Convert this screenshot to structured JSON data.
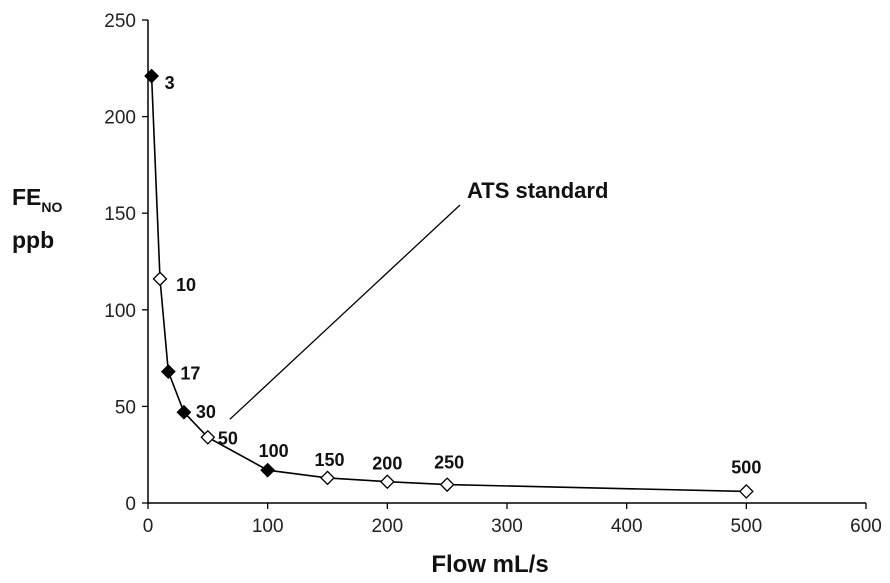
{
  "chart_data": {
    "type": "line",
    "xlabel": "Flow mL/s",
    "ylabel": {
      "main": "FE",
      "sub": "NO",
      "unit": "ppb"
    },
    "xlim": [
      0,
      600
    ],
    "ylim": [
      0,
      250
    ],
    "xticks": [
      0,
      100,
      200,
      300,
      400,
      500,
      600
    ],
    "yticks": [
      0,
      50,
      100,
      150,
      200,
      250
    ],
    "grid": false,
    "legend": "none",
    "series": [
      {
        "points": [
          {
            "x": 3,
            "y": 221,
            "label": "3",
            "filled": true
          },
          {
            "x": 10,
            "y": 116,
            "label": "10",
            "filled": false
          },
          {
            "x": 17,
            "y": 68,
            "label": "17",
            "filled": true
          },
          {
            "x": 30,
            "y": 47,
            "label": "30",
            "filled": true
          },
          {
            "x": 50,
            "y": 34,
            "label": "50",
            "filled": false
          },
          {
            "x": 100,
            "y": 17,
            "label": "100",
            "filled": true
          },
          {
            "x": 150,
            "y": 13,
            "label": "150",
            "filled": false
          },
          {
            "x": 200,
            "y": 11,
            "label": "200",
            "filled": false
          },
          {
            "x": 250,
            "y": 9.5,
            "label": "250",
            "filled": false
          },
          {
            "x": 500,
            "y": 6,
            "label": "500",
            "filled": false
          }
        ]
      }
    ],
    "annotation": {
      "text": "ATS standard",
      "points_to": {
        "x": 50,
        "y": 34
      }
    },
    "colors": {
      "line": "#000000",
      "marker_filled": "#000000",
      "marker_open": "#ffffff"
    }
  }
}
